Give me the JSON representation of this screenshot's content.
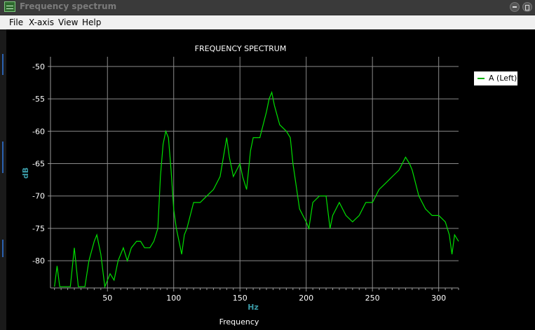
{
  "window": {
    "title": "Frequency spectrum"
  },
  "menu": {
    "items": [
      "File",
      "X-axis",
      "View",
      "Help"
    ]
  },
  "chart_data": {
    "type": "line",
    "title": "FREQUENCY SPECTRUM",
    "xlabel": "Frequency",
    "xunit": "Hz",
    "ylabel": "dB",
    "xlim": [
      7,
      315
    ],
    "ylim": [
      -84.2,
      -48.5
    ],
    "xticks": [
      50,
      100,
      150,
      200,
      250,
      300
    ],
    "yticks": [
      -50,
      -55,
      -60,
      -65,
      -70,
      -75,
      -80
    ],
    "grid": true,
    "legend": "top-right",
    "series": [
      {
        "name": "A (Left)",
        "color": "#00e000",
        "x": [
          10,
          12,
          14,
          18,
          22,
          25,
          28,
          33,
          36,
          40,
          42,
          45,
          48,
          52,
          55,
          58,
          62,
          65,
          68,
          72,
          75,
          78,
          82,
          85,
          88,
          90,
          92,
          94,
          96,
          98,
          100,
          102,
          104,
          106,
          108,
          110,
          115,
          120,
          125,
          130,
          135,
          140,
          142,
          145,
          150,
          152,
          155,
          158,
          160,
          165,
          170,
          172,
          174,
          176,
          180,
          185,
          188,
          190,
          195,
          200,
          202,
          205,
          210,
          215,
          218,
          220,
          225,
          230,
          235,
          240,
          245,
          250,
          255,
          260,
          265,
          270,
          275,
          278,
          280,
          285,
          290,
          295,
          300,
          305,
          308,
          310,
          312,
          315
        ],
        "y": [
          -84,
          -80.8,
          -84,
          -84,
          -84,
          -78,
          -84,
          -84,
          -80,
          -77,
          -76,
          -79,
          -84,
          -82,
          -83,
          -80,
          -78,
          -80,
          -78,
          -77,
          -77,
          -78,
          -78,
          -77,
          -75,
          -67,
          -62,
          -60,
          -61,
          -66,
          -72,
          -75,
          -77,
          -79,
          -76,
          -75,
          -71,
          -71,
          -70,
          -69,
          -67,
          -61,
          -64,
          -67,
          -65,
          -67,
          -69,
          -63,
          -61,
          -61,
          -57,
          -55,
          -54,
          -56,
          -59,
          -60,
          -61,
          -65,
          -72,
          -74,
          -75,
          -71,
          -70,
          -70,
          -75,
          -73,
          -71,
          -73,
          -74,
          -73,
          -71,
          -71,
          -69,
          -68,
          -67,
          -66,
          -64,
          -65,
          -66,
          -70,
          -72,
          -73,
          -73,
          -74,
          -76,
          -79,
          -76,
          -77
        ]
      }
    ]
  }
}
